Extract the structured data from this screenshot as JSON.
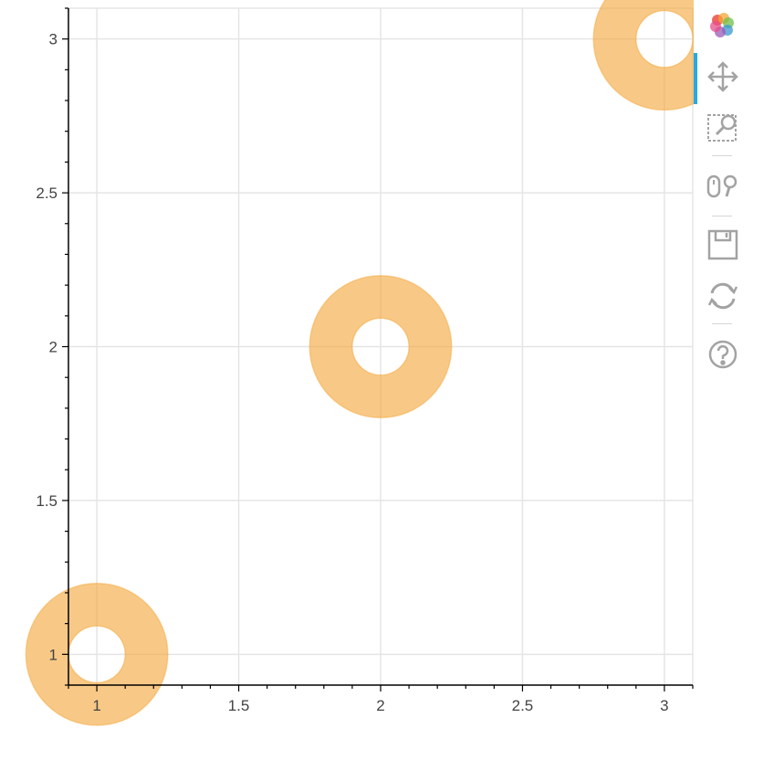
{
  "chart_data": {
    "type": "scatter",
    "glyph": "annulus",
    "x": [
      1,
      2,
      3
    ],
    "y": [
      1,
      2,
      3
    ],
    "inner_radius": 0.1,
    "outer_radius": 0.25,
    "xlim": [
      0.9,
      3.1
    ],
    "ylim": [
      0.9,
      3.1
    ],
    "xticks": [
      1,
      1.5,
      2,
      2.5,
      3
    ],
    "xtick_labels": [
      "1",
      "1.5",
      "2",
      "2.5",
      "3"
    ],
    "yticks": [
      1,
      1.5,
      2,
      2.5,
      3
    ],
    "ytick_labels": [
      "1",
      "1.5",
      "2",
      "2.5",
      "3"
    ],
    "grid": true,
    "colors": {
      "fill": "#f4a536",
      "fill_alpha": 0.6,
      "grid": "#e5e5e5",
      "axis": "#000000"
    }
  },
  "toolbar": {
    "tools": [
      {
        "name": "bokeh-logo-icon",
        "tooltip": ""
      },
      {
        "name": "pan-tool-icon",
        "active": true
      },
      {
        "name": "box-zoom-tool-icon"
      },
      {
        "name": "wheel-zoom-tool-icon"
      },
      {
        "name": "save-tool-icon"
      },
      {
        "name": "reset-tool-icon"
      },
      {
        "name": "help-tool-icon"
      }
    ],
    "accent_color": "#26aae1",
    "icon_color": "#a3a3a3"
  }
}
